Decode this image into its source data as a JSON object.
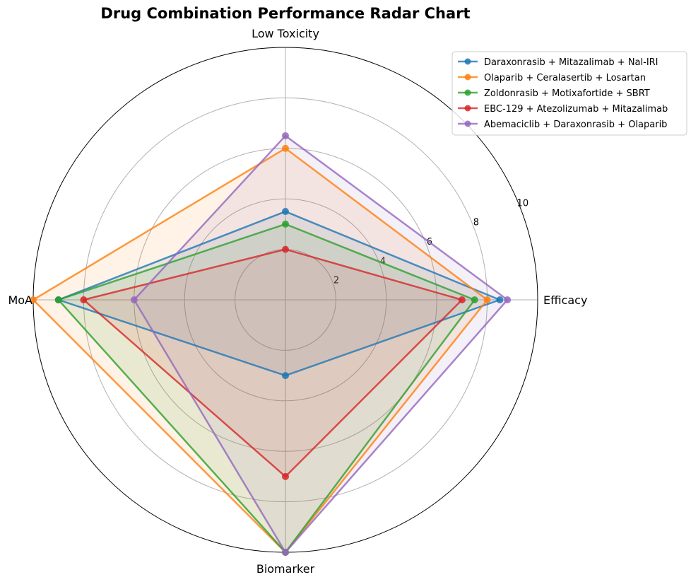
{
  "chart_data": {
    "type": "radar",
    "title": "Drug Combination Performance Radar Chart",
    "axes": [
      "Efficacy",
      "Low Toxicity",
      "MoA",
      "Biomarker"
    ],
    "rlim": [
      0,
      10
    ],
    "r_ticks": [
      "2",
      "4",
      "6",
      "8",
      "10"
    ],
    "grid": true,
    "legend_position": "top-right",
    "series": [
      {
        "name": "Daraxonrasib + Mitazalimab + Nal-IRI",
        "color": "#1f77b4",
        "values": [
          8.5,
          3.5,
          9.0,
          3.0
        ]
      },
      {
        "name": "Olaparib + Ceralasertib + Losartan",
        "color": "#ff7f0e",
        "values": [
          8.0,
          6.0,
          10.0,
          10.0
        ]
      },
      {
        "name": "Zoldonrasib + Motixafortide + SBRT",
        "color": "#2ca02c",
        "values": [
          7.5,
          3.0,
          9.0,
          10.0
        ]
      },
      {
        "name": "EBC-129 + Atezolizumab + Mitazalimab",
        "color": "#d62728",
        "values": [
          7.0,
          2.0,
          8.0,
          7.0
        ]
      },
      {
        "name": "Abemaciclib + Daraxonrasib + Olaparib",
        "color": "#9467bd",
        "values": [
          8.8,
          6.5,
          6.0,
          10.0
        ]
      }
    ]
  }
}
